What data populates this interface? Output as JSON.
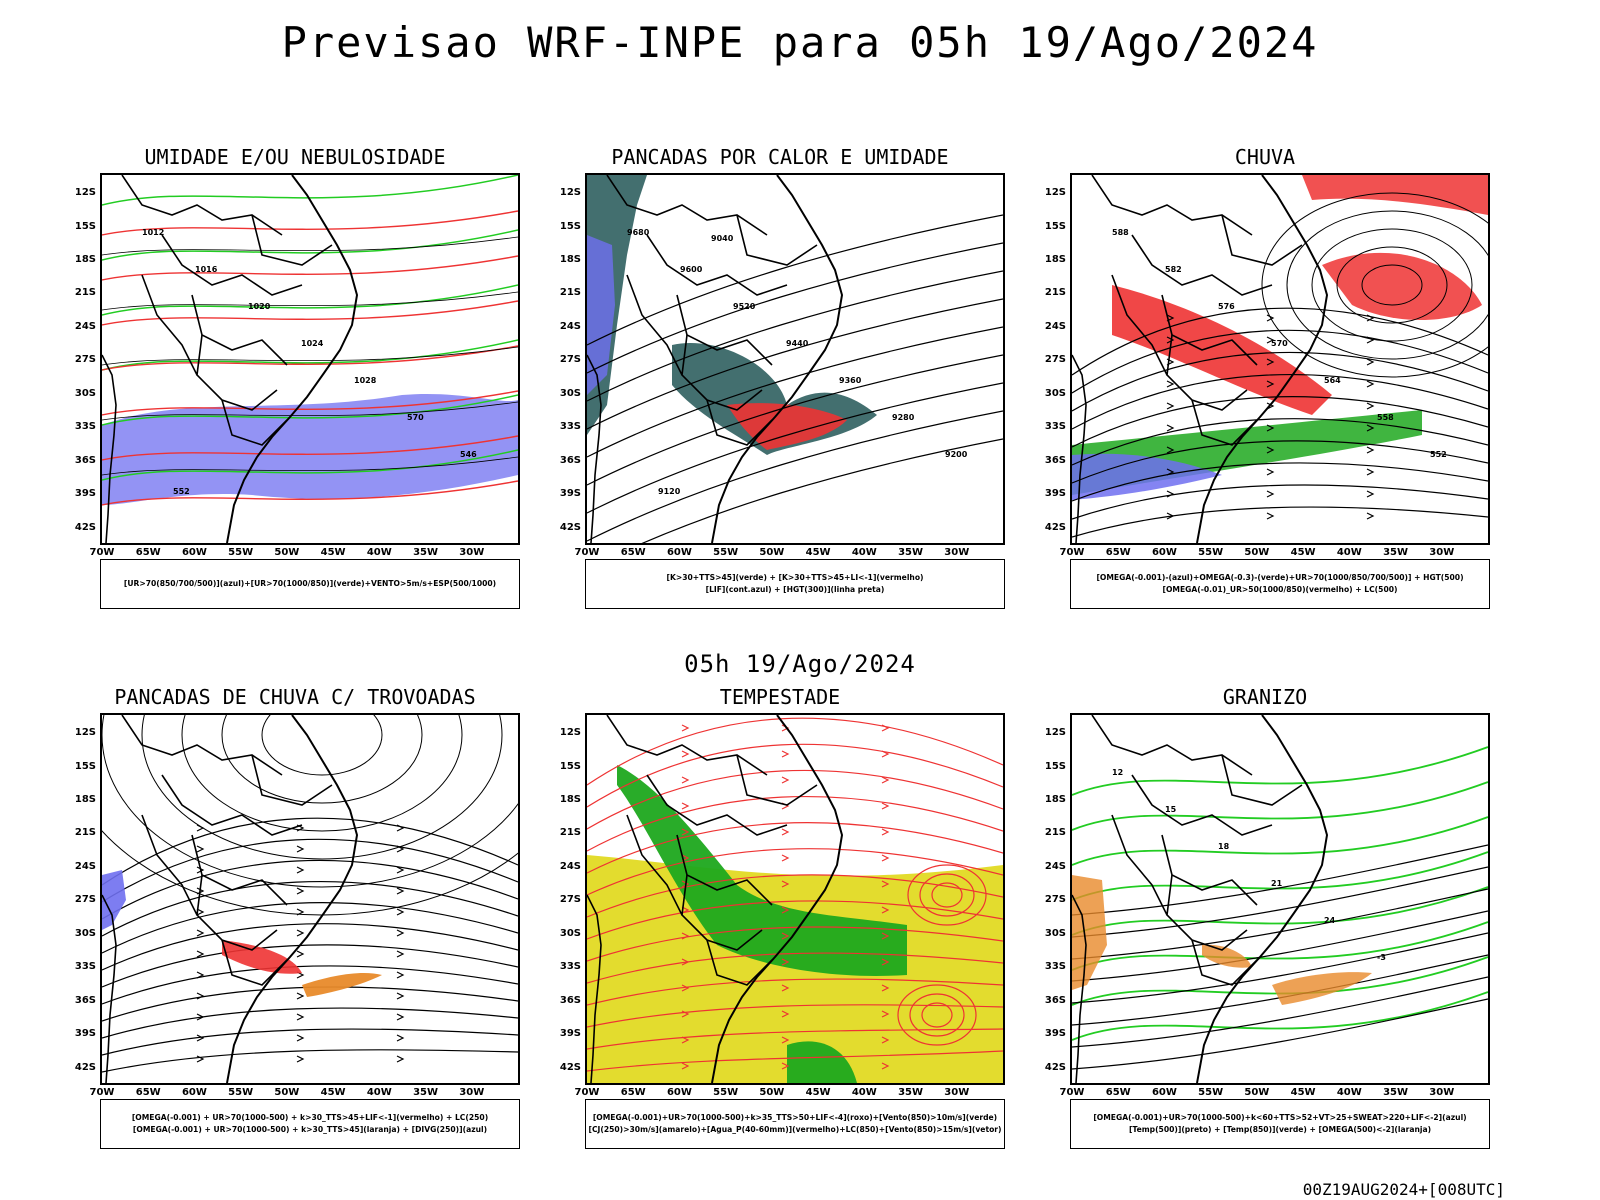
{
  "header": {
    "title": "Previsao WRF-INPE  para 05h 19/Ago/2024",
    "subtitle": "05h 19/Ago/2024",
    "run_stamp": "00Z19AUG2024+[008UTC]"
  },
  "axes": {
    "lat_labels": [
      "12S",
      "15S",
      "18S",
      "21S",
      "24S",
      "27S",
      "30S",
      "33S",
      "36S",
      "39S",
      "42S"
    ],
    "lon_labels": [
      "70W",
      "65W",
      "60W",
      "55W",
      "50W",
      "45W",
      "40W",
      "35W",
      "30W"
    ]
  },
  "colors": {
    "blue_fill": "#6f6ff0",
    "green_line": "#22cc22",
    "red_line": "#ee3333",
    "teal_fill": "#2f5f5f",
    "green_fill": "#1ea81e",
    "yellow_fill": "#e3dc2e",
    "orange": "#e88a2a"
  },
  "panels": [
    {
      "title": "UMIDADE E/OU NEBULOSIDADE",
      "legend": [
        "[UR>70(850/700/500)](azul)+[UR>70(1000/850)](verde)+VENTO>5m/s+ESP(500/1000)"
      ],
      "contour_labels": [
        "1012",
        "1016",
        "1020",
        "1024",
        "1028",
        "570",
        "546",
        "552"
      ]
    },
    {
      "title": "PANCADAS POR CALOR E UMIDADE",
      "legend": [
        "[K>30+TTS>45](verde) + [K>30+TTS>45+LI<-1](vermelho)",
        "[LIF](cont.azul) + [HGT(300)](linha preta)"
      ],
      "contour_labels": [
        "9680",
        "9600",
        "9520",
        "9440",
        "9360",
        "9280",
        "9200",
        "9120",
        "9040"
      ]
    },
    {
      "title": "CHUVA",
      "legend": [
        "[OMEGA(-0.001)-(azul)+OMEGA(-0.3)-(verde)+UR>70(1000/850/700/500)] + HGT(500)",
        "[OMEGA(-0.01)_UR>50(1000/850)(vermelho) + LC(500)"
      ],
      "contour_labels": [
        "588",
        "582",
        "576",
        "570",
        "564",
        "558",
        "552"
      ]
    },
    {
      "title": "PANCADAS DE CHUVA C/ TROVOADAS",
      "legend": [
        "[OMEGA(-0.001) + UR>70(1000-500) + k>30_TTS>45+LIF<-1](vermelho) + LC(250)",
        "[OMEGA(-0.001) + UR>70(1000-500) + k>30_TTS>45](laranja) + [DIVG(250)](azul)"
      ],
      "contour_labels": []
    },
    {
      "title": "TEMPESTADE",
      "legend": [
        "[OMEGA(-0.001)+UR>70(1000-500)+k>35_TTS>50+LIF<-4](roxo)+[Vento(850)>10m/s](verde)",
        "[CJ(250)>30m/s](amarelo)+[Agua_P(40-60mm)](vermelho)+LC(850)+[Vento(850)>15m/s](vetor)"
      ],
      "contour_labels": []
    },
    {
      "title": "GRANIZO",
      "legend": [
        "[OMEGA(-0.001)+UR>70(1000-500)+k<60+TTS>52+VT>25+SWEAT>220+LIF<-2](azul)",
        "[Temp(500)](preto) + [Temp(850)](verde) + [OMEGA(500)<-2](laranja)"
      ],
      "contour_labels": [
        "12",
        "15",
        "18",
        "21",
        "24",
        "-3"
      ]
    }
  ]
}
